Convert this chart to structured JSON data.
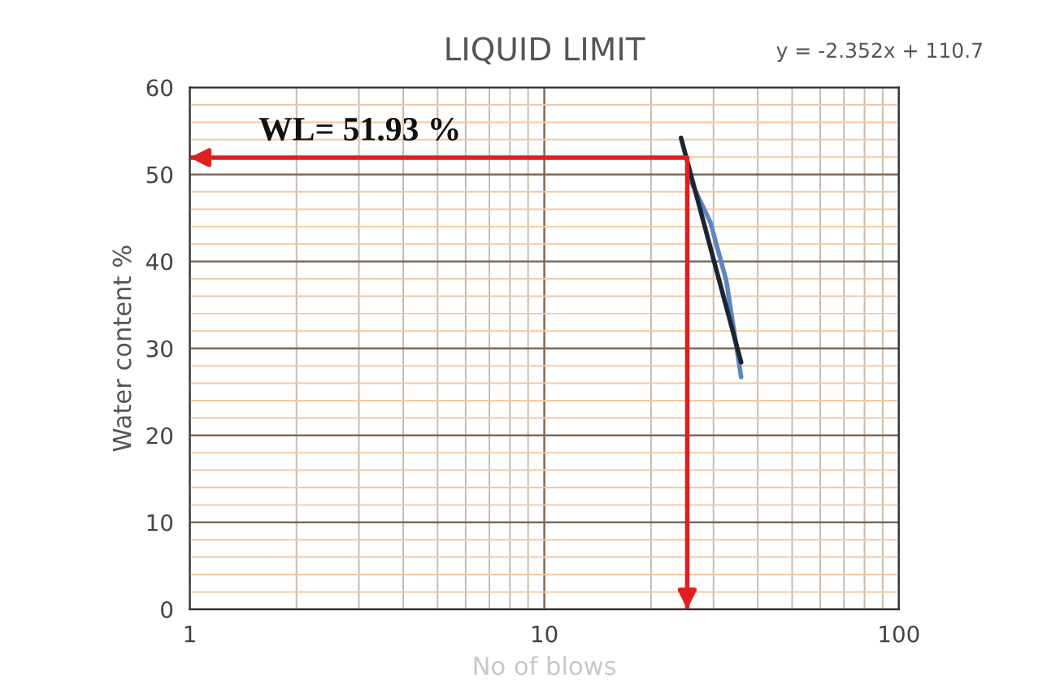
{
  "chart_data": {
    "type": "line",
    "title": "LIQUID LIMIT",
    "xlabel": "No of blows",
    "ylabel": "Water content %",
    "log": "x",
    "xlim": [
      1,
      100
    ],
    "xticks": [
      1,
      10,
      100
    ],
    "ylim": [
      0,
      60
    ],
    "yticks": [
      0,
      {
        "value": 2,
        "label": null
      },
      {
        "value": 4,
        "label": null
      },
      {
        "value": 6,
        "label": null
      },
      {
        "value": 8,
        "label": null
      },
      10,
      {
        "value": 12,
        "label": null
      },
      {
        "value": 14,
        "label": null
      },
      {
        "value": 16,
        "label": null
      },
      {
        "value": 18,
        "label": null
      },
      20,
      {
        "value": 22,
        "label": null
      },
      {
        "value": 24,
        "label": null
      },
      {
        "value": 26,
        "label": null
      },
      {
        "value": 28,
        "label": null
      },
      30,
      {
        "value": 32,
        "label": null
      },
      {
        "value": 34,
        "label": null
      },
      {
        "value": 36,
        "label": null
      },
      {
        "value": 38,
        "label": null
      },
      40,
      {
        "value": 42,
        "label": null
      },
      {
        "value": 44,
        "label": null
      },
      {
        "value": 46,
        "label": null
      },
      {
        "value": 48,
        "label": null
      },
      50,
      {
        "value": 52,
        "label": null
      },
      {
        "value": 54,
        "label": null
      },
      {
        "value": 56,
        "label": null
      },
      {
        "value": 58,
        "label": null
      },
      60
    ],
    "grid": true,
    "legend": false,
    "marker": "none",
    "line_style": "solid",
    "series": [
      {
        "color": "#5b86c0",
        "x": [
          25.3,
          29.4,
          32.6,
          35.9
        ],
        "values": [
          50.1,
          44.5,
          37.8,
          26.7
        ]
      },
      {
        "color": "#1c2533",
        "x": [
          24.3,
          35.9
        ],
        "values": [
          54.2,
          28.4
        ]
      },
      {
        "color": "#e02020",
        "x": [
          1,
          25.3,
          25.3
        ],
        "values": [
          51.93,
          51.93,
          0
        ]
      }
    ],
    "annotations": [
      "WL= 51.93 %",
      "y = -2.352x + 110.7"
    ]
  }
}
